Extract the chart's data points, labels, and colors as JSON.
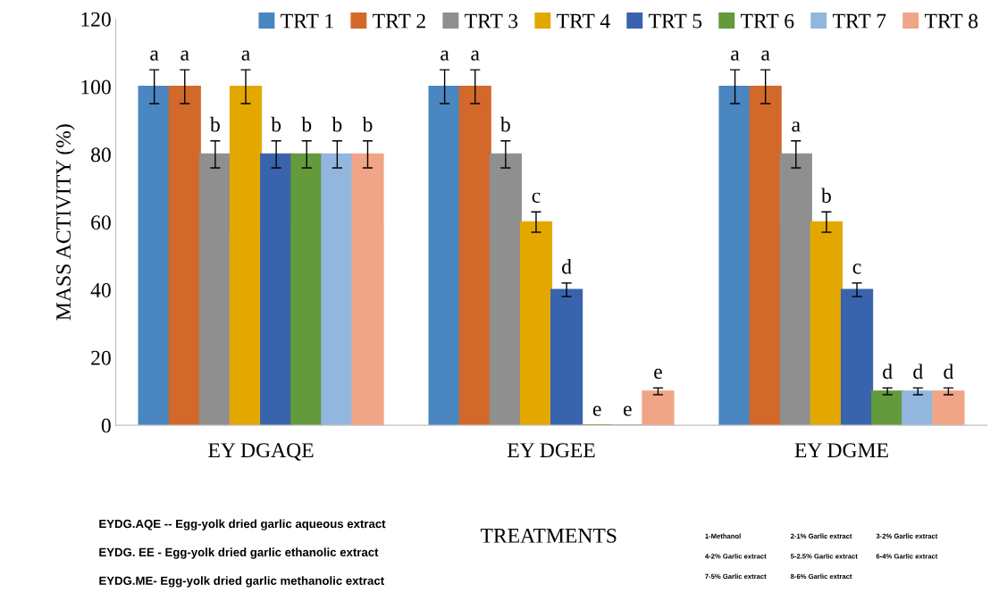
{
  "chart_data": {
    "type": "bar",
    "xlabel": "TREATMENTS",
    "ylabel": "MASS ACTIVITY (%)",
    "categories": [
      "EY DGAQE",
      "EY DGEE",
      "EY DGME"
    ],
    "series": [
      {
        "name": "TRT 1",
        "color": "#4a86c0",
        "values": [
          100,
          100,
          100
        ],
        "errors": [
          5,
          5,
          5
        ],
        "value_labels": [
          "a",
          "a",
          "a"
        ]
      },
      {
        "name": "TRT 2",
        "color": "#d2692a",
        "values": [
          100,
          100,
          100
        ],
        "errors": [
          5,
          5,
          5
        ],
        "value_labels": [
          "a",
          "a",
          "a"
        ]
      },
      {
        "name": "TRT 3",
        "color": "#8f8f8f",
        "values": [
          80,
          80,
          80
        ],
        "errors": [
          4,
          4,
          4
        ],
        "value_labels": [
          "b",
          "b",
          "a"
        ]
      },
      {
        "name": "TRT 4",
        "color": "#e3a800",
        "values": [
          100,
          60,
          60
        ],
        "errors": [
          5,
          3,
          3
        ],
        "value_labels": [
          "a",
          "c",
          "b"
        ]
      },
      {
        "name": "TRT 5",
        "color": "#3a63ad",
        "values": [
          80,
          40,
          40
        ],
        "errors": [
          4,
          2,
          2
        ],
        "value_labels": [
          "b",
          "d",
          "c"
        ]
      },
      {
        "name": "TRT 6",
        "color": "#629a3c",
        "values": [
          80,
          0,
          10
        ],
        "errors": [
          4,
          null,
          1
        ],
        "value_labels": [
          "b",
          "e",
          "d"
        ]
      },
      {
        "name": "TRT 7",
        "color": "#93b6df",
        "values": [
          80,
          0,
          10
        ],
        "errors": [
          4,
          null,
          1
        ],
        "value_labels": [
          "b",
          "e",
          "d"
        ]
      },
      {
        "name": "TRT 8",
        "color": "#f0a586",
        "values": [
          80,
          10,
          10
        ],
        "errors": [
          4,
          1,
          1
        ],
        "value_labels": [
          "b",
          "e",
          "d"
        ]
      }
    ],
    "ylim": [
      0,
      120
    ],
    "yticks": [
      0,
      20,
      40,
      60,
      80,
      100,
      120
    ],
    "legend": "top right",
    "annotations": [
      "EYDG.AQE -- Egg-yolk dried garlic aqueous extract",
      "EYDG. EE - Egg-yolk dried garlic ethanolic extract",
      "EYDG.ME- Egg-yolk dried garlic methanolic extract",
      "1-Methanol",
      "2-1% Garlic extract",
      "3-2% Garlic extract",
      "4-2% Garlic extract",
      "5-2.5% Garlic extract",
      "6-4% Garlic extract",
      "7-5% Garlic extract",
      "8-6% Garlic extract"
    ]
  }
}
